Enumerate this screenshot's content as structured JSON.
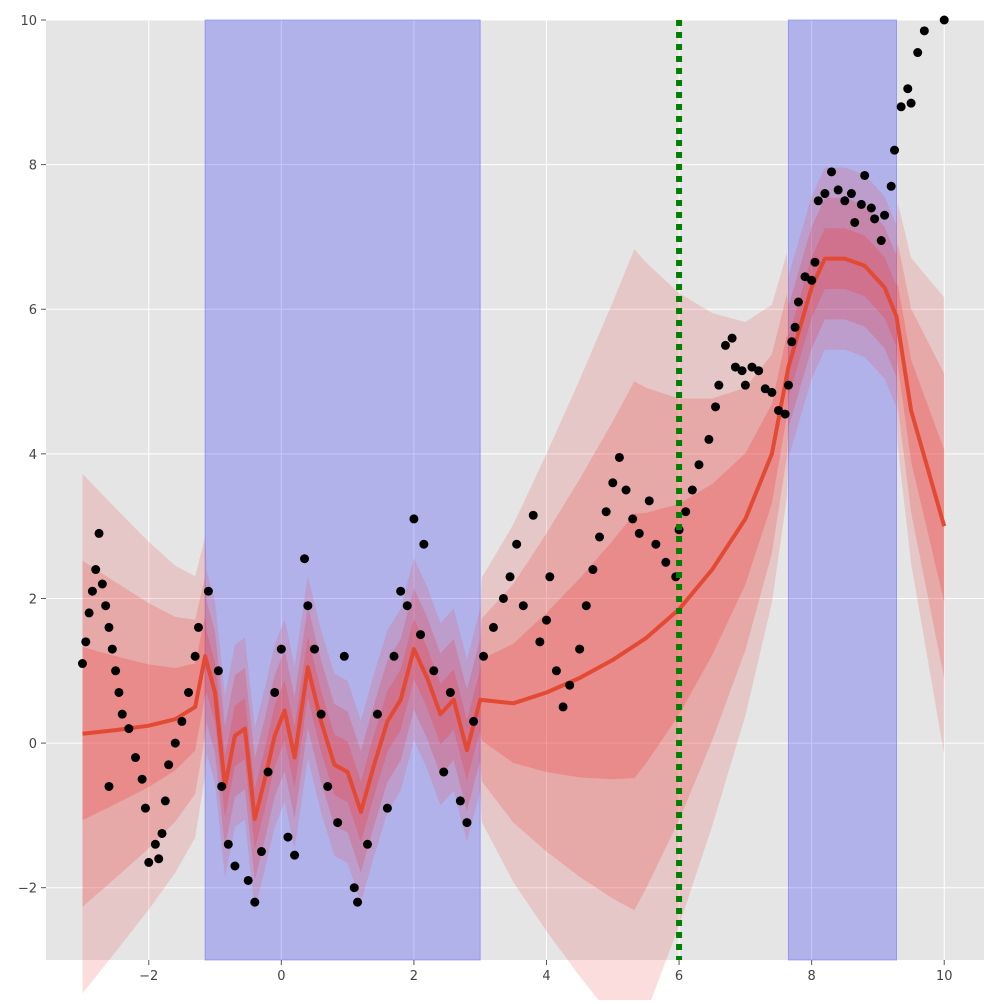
{
  "chart_data": {
    "type": "scatter",
    "title": "",
    "xlabel": "",
    "ylabel": "",
    "xlim": [
      -3.55,
      10.6
    ],
    "ylim": [
      -3.0,
      10.0
    ],
    "grid": true,
    "style": "ggplot",
    "x_ticks": [
      -2,
      0,
      2,
      4,
      6,
      8,
      10
    ],
    "y_ticks": [
      -2,
      0,
      2,
      4,
      6,
      8,
      10
    ],
    "shaded_regions": [
      {
        "x_start": -1.15,
        "x_end": 3.0
      },
      {
        "x_start": 7.65,
        "x_end": 9.28
      }
    ],
    "vertical_line": {
      "x": 6.0,
      "color": "#008000",
      "style": "dotted"
    },
    "predictive_mean": [
      {
        "x": -3.0,
        "y": 0.13
      },
      {
        "x": -2.5,
        "y": 0.18
      },
      {
        "x": -2.0,
        "y": 0.24
      },
      {
        "x": -1.6,
        "y": 0.33
      },
      {
        "x": -1.3,
        "y": 0.5
      },
      {
        "x": -1.15,
        "y": 1.2
      },
      {
        "x": -1.0,
        "y": 0.7
      },
      {
        "x": -0.85,
        "y": -0.6
      },
      {
        "x": -0.7,
        "y": 0.1
      },
      {
        "x": -0.55,
        "y": 0.2
      },
      {
        "x": -0.4,
        "y": -1.05
      },
      {
        "x": -0.25,
        "y": -0.5
      },
      {
        "x": -0.1,
        "y": 0.1
      },
      {
        "x": 0.05,
        "y": 0.45
      },
      {
        "x": 0.2,
        "y": -0.2
      },
      {
        "x": 0.4,
        "y": 1.05
      },
      {
        "x": 0.6,
        "y": 0.3
      },
      {
        "x": 0.8,
        "y": -0.3
      },
      {
        "x": 1.0,
        "y": -0.4
      },
      {
        "x": 1.2,
        "y": -0.95
      },
      {
        "x": 1.4,
        "y": -0.3
      },
      {
        "x": 1.6,
        "y": 0.3
      },
      {
        "x": 1.8,
        "y": 0.6
      },
      {
        "x": 2.0,
        "y": 1.3
      },
      {
        "x": 2.2,
        "y": 0.9
      },
      {
        "x": 2.4,
        "y": 0.4
      },
      {
        "x": 2.6,
        "y": 0.6
      },
      {
        "x": 2.8,
        "y": -0.1
      },
      {
        "x": 3.0,
        "y": 0.6
      },
      {
        "x": 3.5,
        "y": 0.55
      },
      {
        "x": 4.0,
        "y": 0.7
      },
      {
        "x": 4.5,
        "y": 0.9
      },
      {
        "x": 5.0,
        "y": 1.15
      },
      {
        "x": 5.5,
        "y": 1.45
      },
      {
        "x": 6.0,
        "y": 1.85
      },
      {
        "x": 6.5,
        "y": 2.4
      },
      {
        "x": 7.0,
        "y": 3.1
      },
      {
        "x": 7.4,
        "y": 4.0
      },
      {
        "x": 7.65,
        "y": 5.2
      },
      {
        "x": 8.0,
        "y": 6.3
      },
      {
        "x": 8.2,
        "y": 6.7
      },
      {
        "x": 8.5,
        "y": 6.7
      },
      {
        "x": 8.8,
        "y": 6.6
      },
      {
        "x": 9.1,
        "y": 6.3
      },
      {
        "x": 9.28,
        "y": 5.9
      },
      {
        "x": 9.5,
        "y": 4.6
      },
      {
        "x": 10.0,
        "y": 3.0
      }
    ],
    "observations": [
      {
        "x": -2.75,
        "y": 2.9
      },
      {
        "x": -2.8,
        "y": 2.4
      },
      {
        "x": -2.85,
        "y": 2.1
      },
      {
        "x": -2.9,
        "y": 1.8
      },
      {
        "x": -2.7,
        "y": 2.2
      },
      {
        "x": -2.65,
        "y": 1.9
      },
      {
        "x": -2.95,
        "y": 1.4
      },
      {
        "x": -3.0,
        "y": 1.1
      },
      {
        "x": -2.6,
        "y": 1.6
      },
      {
        "x": -2.55,
        "y": 1.3
      },
      {
        "x": -2.5,
        "y": 1.0
      },
      {
        "x": -2.45,
        "y": 0.7
      },
      {
        "x": -2.4,
        "y": 0.4
      },
      {
        "x": -2.6,
        "y": -0.6
      },
      {
        "x": -2.3,
        "y": 0.2
      },
      {
        "x": -2.2,
        "y": -0.2
      },
      {
        "x": -2.1,
        "y": -0.5
      },
      {
        "x": -2.05,
        "y": -0.9
      },
      {
        "x": -2.0,
        "y": -1.65
      },
      {
        "x": -1.9,
        "y": -1.4
      },
      {
        "x": -1.85,
        "y": -1.6
      },
      {
        "x": -1.8,
        "y": -1.25
      },
      {
        "x": -1.75,
        "y": -0.8
      },
      {
        "x": -1.7,
        "y": -0.3
      },
      {
        "x": -1.6,
        "y": 0.0
      },
      {
        "x": -1.5,
        "y": 0.3
      },
      {
        "x": -1.4,
        "y": 0.7
      },
      {
        "x": -1.3,
        "y": 1.2
      },
      {
        "x": -1.25,
        "y": 1.6
      },
      {
        "x": -1.1,
        "y": 2.1
      },
      {
        "x": -0.95,
        "y": 1.0
      },
      {
        "x": -0.9,
        "y": -0.6
      },
      {
        "x": -0.8,
        "y": -1.4
      },
      {
        "x": -0.7,
        "y": -1.7
      },
      {
        "x": -0.5,
        "y": -1.9
      },
      {
        "x": -0.4,
        "y": -2.2
      },
      {
        "x": -0.3,
        "y": -1.5
      },
      {
        "x": -0.2,
        "y": -0.4
      },
      {
        "x": -0.1,
        "y": 0.7
      },
      {
        "x": 0.0,
        "y": 1.3
      },
      {
        "x": 0.1,
        "y": -1.3
      },
      {
        "x": 0.2,
        "y": -1.55
      },
      {
        "x": 0.35,
        "y": 2.55
      },
      {
        "x": 0.4,
        "y": 1.9
      },
      {
        "x": 0.5,
        "y": 1.3
      },
      {
        "x": 0.6,
        "y": 0.4
      },
      {
        "x": 0.7,
        "y": -0.6
      },
      {
        "x": 0.85,
        "y": -1.1
      },
      {
        "x": 0.95,
        "y": 1.2
      },
      {
        "x": 1.1,
        "y": -2.0
      },
      {
        "x": 1.15,
        "y": -2.2
      },
      {
        "x": 1.3,
        "y": -1.4
      },
      {
        "x": 1.45,
        "y": 0.4
      },
      {
        "x": 1.6,
        "y": -0.9
      },
      {
        "x": 1.7,
        "y": 1.2
      },
      {
        "x": 1.8,
        "y": 2.1
      },
      {
        "x": 1.9,
        "y": 1.9
      },
      {
        "x": 2.0,
        "y": 3.1
      },
      {
        "x": 2.1,
        "y": 1.5
      },
      {
        "x": 2.15,
        "y": 2.75
      },
      {
        "x": 2.3,
        "y": 1.0
      },
      {
        "x": 2.45,
        "y": -0.4
      },
      {
        "x": 2.55,
        "y": 0.7
      },
      {
        "x": 2.7,
        "y": -0.8
      },
      {
        "x": 2.8,
        "y": -1.1
      },
      {
        "x": 2.9,
        "y": 0.3
      },
      {
        "x": 3.05,
        "y": 1.2
      },
      {
        "x": 3.2,
        "y": 1.6
      },
      {
        "x": 3.35,
        "y": 2.0
      },
      {
        "x": 3.45,
        "y": 2.3
      },
      {
        "x": 3.55,
        "y": 2.75
      },
      {
        "x": 3.65,
        "y": 1.9
      },
      {
        "x": 3.8,
        "y": 3.15
      },
      {
        "x": 3.9,
        "y": 1.4
      },
      {
        "x": 4.0,
        "y": 1.7
      },
      {
        "x": 4.05,
        "y": 2.3
      },
      {
        "x": 4.15,
        "y": 1.0
      },
      {
        "x": 4.25,
        "y": 0.5
      },
      {
        "x": 4.35,
        "y": 0.8
      },
      {
        "x": 4.5,
        "y": 1.3
      },
      {
        "x": 4.6,
        "y": 1.9
      },
      {
        "x": 4.7,
        "y": 2.4
      },
      {
        "x": 4.8,
        "y": 2.85
      },
      {
        "x": 4.9,
        "y": 3.2
      },
      {
        "x": 5.0,
        "y": 3.6
      },
      {
        "x": 5.1,
        "y": 3.95
      },
      {
        "x": 5.2,
        "y": 3.5
      },
      {
        "x": 5.3,
        "y": 3.1
      },
      {
        "x": 5.4,
        "y": 2.9
      },
      {
        "x": 5.55,
        "y": 3.35
      },
      {
        "x": 5.65,
        "y": 2.75
      },
      {
        "x": 5.8,
        "y": 2.5
      },
      {
        "x": 5.95,
        "y": 2.3
      },
      {
        "x": 6.0,
        "y": 2.95
      },
      {
        "x": 6.1,
        "y": 3.2
      },
      {
        "x": 6.2,
        "y": 3.5
      },
      {
        "x": 6.3,
        "y": 3.85
      },
      {
        "x": 6.45,
        "y": 4.2
      },
      {
        "x": 6.55,
        "y": 4.65
      },
      {
        "x": 6.6,
        "y": 4.95
      },
      {
        "x": 6.7,
        "y": 5.5
      },
      {
        "x": 6.8,
        "y": 5.6
      },
      {
        "x": 6.85,
        "y": 5.2
      },
      {
        "x": 6.95,
        "y": 5.15
      },
      {
        "x": 7.0,
        "y": 4.95
      },
      {
        "x": 7.1,
        "y": 5.2
      },
      {
        "x": 7.2,
        "y": 5.15
      },
      {
        "x": 7.3,
        "y": 4.9
      },
      {
        "x": 7.4,
        "y": 4.85
      },
      {
        "x": 7.5,
        "y": 4.6
      },
      {
        "x": 7.6,
        "y": 4.55
      },
      {
        "x": 7.65,
        "y": 4.95
      },
      {
        "x": 7.7,
        "y": 5.55
      },
      {
        "x": 7.75,
        "y": 5.75
      },
      {
        "x": 7.8,
        "y": 6.1
      },
      {
        "x": 7.9,
        "y": 6.45
      },
      {
        "x": 8.0,
        "y": 6.4
      },
      {
        "x": 8.05,
        "y": 6.65
      },
      {
        "x": 8.1,
        "y": 7.5
      },
      {
        "x": 8.2,
        "y": 7.6
      },
      {
        "x": 8.3,
        "y": 7.9
      },
      {
        "x": 8.4,
        "y": 7.65
      },
      {
        "x": 8.5,
        "y": 7.5
      },
      {
        "x": 8.6,
        "y": 7.6
      },
      {
        "x": 8.65,
        "y": 7.2
      },
      {
        "x": 8.75,
        "y": 7.45
      },
      {
        "x": 8.8,
        "y": 7.85
      },
      {
        "x": 8.9,
        "y": 7.4
      },
      {
        "x": 8.95,
        "y": 7.25
      },
      {
        "x": 9.05,
        "y": 6.95
      },
      {
        "x": 9.1,
        "y": 7.3
      },
      {
        "x": 9.2,
        "y": 7.7
      },
      {
        "x": 9.25,
        "y": 8.2
      },
      {
        "x": 9.35,
        "y": 8.8
      },
      {
        "x": 9.45,
        "y": 9.05
      },
      {
        "x": 9.5,
        "y": 8.85
      },
      {
        "x": 9.6,
        "y": 9.55
      },
      {
        "x": 9.7,
        "y": 9.85
      },
      {
        "x": 10.0,
        "y": 10.0
      }
    ]
  }
}
